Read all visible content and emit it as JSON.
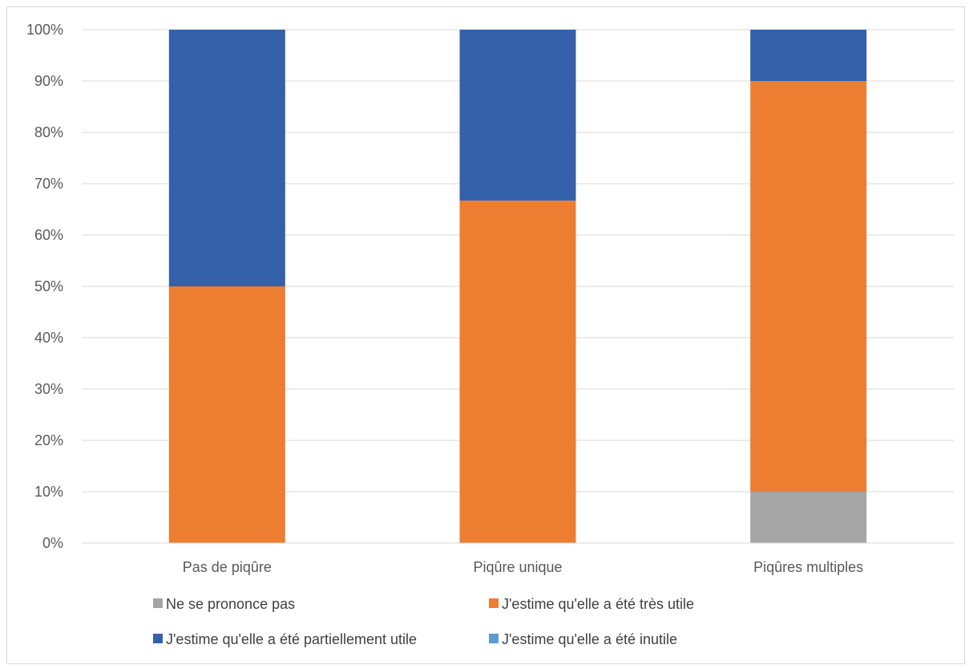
{
  "chart_data": {
    "type": "bar",
    "stacked": true,
    "percent": true,
    "categories": [
      "Pas de piqûre",
      "Piqûre unique",
      "Piqûres multiples"
    ],
    "series": [
      {
        "name": "Ne se prononce pas",
        "color": "#a5a5a5",
        "values": [
          0,
          0,
          10
        ]
      },
      {
        "name": "J'estime qu'elle a été très utile",
        "color": "#ed7d31",
        "values": [
          50,
          66.7,
          80
        ]
      },
      {
        "name": "J'estime qu'elle a été partiellement utile",
        "color": "#3561aa",
        "values": [
          50,
          33.3,
          10
        ]
      },
      {
        "name": "J'estime qu'elle a été inutile",
        "color": "#5b9bd5",
        "values": [
          0,
          0,
          0
        ]
      }
    ],
    "y_ticks": [
      "0%",
      "10%",
      "20%",
      "30%",
      "40%",
      "50%",
      "60%",
      "70%",
      "80%",
      "90%",
      "100%"
    ],
    "ylim": [
      0,
      100
    ],
    "grid": true,
    "legend_position": "bottom"
  }
}
